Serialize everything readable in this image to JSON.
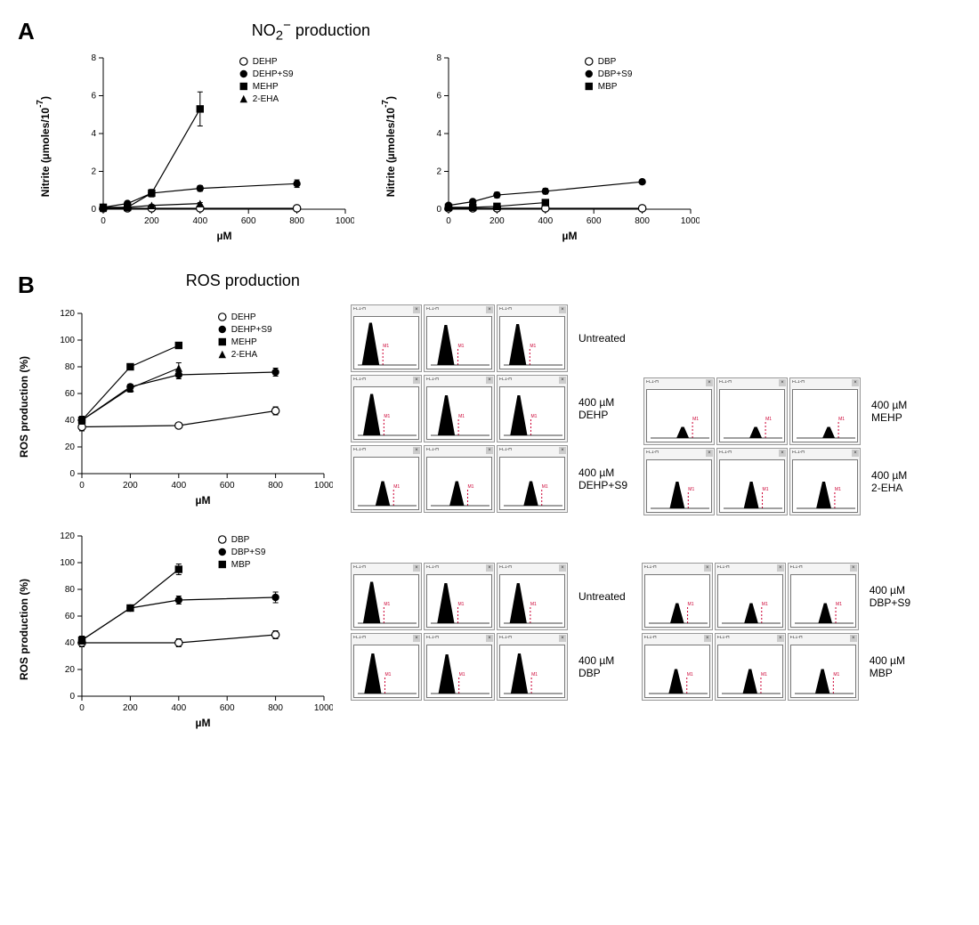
{
  "panelA": {
    "label": "A",
    "title_html": "NO<sub>2</sub><sup>−</sup> production",
    "left_chart": {
      "type": "line",
      "xlabel": "µM",
      "ylabel_html": "Nitrite (µmoles/10<sup>-7</sup>)",
      "xlim": [
        0,
        1000
      ],
      "xtick_step": 200,
      "ylim": [
        0,
        8
      ],
      "ytick_step": 2,
      "font_axis_label": 12,
      "font_tick": 10,
      "font_legend": 10,
      "bg": "#ffffff",
      "axis_color": "#000000",
      "series": [
        {
          "name": "DEHP",
          "marker": "open-circle",
          "x": [
            0,
            100,
            200,
            400,
            800
          ],
          "y": [
            0.05,
            0.05,
            0.05,
            0.05,
            0.05
          ],
          "err": [
            0,
            0,
            0,
            0,
            0
          ]
        },
        {
          "name": "DEHP+S9",
          "marker": "filled-circle",
          "x": [
            0,
            100,
            200,
            400,
            800
          ],
          "y": [
            0.1,
            0.3,
            0.85,
            1.1,
            1.35
          ],
          "err": [
            0,
            0.1,
            0.1,
            0.15,
            0.2
          ]
        },
        {
          "name": "MEHP",
          "marker": "filled-square",
          "x": [
            0,
            100,
            200,
            400
          ],
          "y": [
            0.1,
            0.1,
            0.85,
            5.3
          ],
          "err": [
            0,
            0,
            0.2,
            0.9
          ]
        },
        {
          "name": "2-EHA",
          "marker": "filled-triangle",
          "x": [
            0,
            100,
            200,
            400
          ],
          "y": [
            0.05,
            0.1,
            0.2,
            0.3
          ],
          "err": [
            0,
            0,
            0.05,
            0.05
          ]
        }
      ]
    },
    "right_chart": {
      "type": "line",
      "xlabel": "µM",
      "ylabel_html": "Nitrite (µmoles/10<sup>-7</sup>)",
      "xlim": [
        0,
        1000
      ],
      "xtick_step": 200,
      "ylim": [
        0,
        8
      ],
      "ytick_step": 2,
      "font_axis_label": 12,
      "font_tick": 10,
      "font_legend": 10,
      "bg": "#ffffff",
      "axis_color": "#000000",
      "series": [
        {
          "name": "DBP",
          "marker": "open-circle",
          "x": [
            0,
            100,
            200,
            400,
            800
          ],
          "y": [
            0.05,
            0.05,
            0.05,
            0.05,
            0.05
          ],
          "err": [
            0,
            0,
            0,
            0,
            0
          ]
        },
        {
          "name": "DBP+S9",
          "marker": "filled-circle",
          "x": [
            0,
            100,
            200,
            400,
            800
          ],
          "y": [
            0.2,
            0.4,
            0.75,
            0.95,
            1.45
          ],
          "err": [
            0,
            0.05,
            0.15,
            0.15,
            0.1
          ]
        },
        {
          "name": "MBP",
          "marker": "filled-square",
          "x": [
            0,
            100,
            200,
            400
          ],
          "y": [
            0.1,
            0.1,
            0.15,
            0.35
          ],
          "err": [
            0,
            0,
            0.05,
            0.1
          ]
        }
      ]
    }
  },
  "panelB": {
    "label": "B",
    "title": "ROS production",
    "top_chart": {
      "type": "line",
      "xlabel": "µM",
      "ylabel": "ROS production (%)",
      "xlim": [
        0,
        1000
      ],
      "xtick_step": 200,
      "ylim": [
        0,
        120
      ],
      "ytick_step": 20,
      "font_axis_label": 12,
      "font_tick": 10,
      "font_legend": 10,
      "bg": "#ffffff",
      "axis_color": "#000000",
      "series": [
        {
          "name": "DEHP",
          "marker": "open-circle",
          "x": [
            0,
            400,
            800
          ],
          "y": [
            35,
            36,
            47
          ],
          "err": [
            3,
            2,
            3
          ]
        },
        {
          "name": "DEHP+S9",
          "marker": "filled-circle",
          "x": [
            0,
            200,
            400,
            800
          ],
          "y": [
            40,
            65,
            74,
            76
          ],
          "err": [
            3,
            2,
            3,
            3
          ]
        },
        {
          "name": "MEHP",
          "marker": "filled-square",
          "x": [
            0,
            200,
            400
          ],
          "y": [
            40,
            80,
            96
          ],
          "err": [
            3,
            2,
            2
          ]
        },
        {
          "name": "2-EHA",
          "marker": "filled-triangle",
          "x": [
            0,
            200,
            400
          ],
          "y": [
            40,
            64,
            79
          ],
          "err": [
            3,
            3,
            4
          ]
        }
      ]
    },
    "bottom_chart": {
      "type": "line",
      "xlabel": "µM",
      "ylabel": "ROS production (%)",
      "xlim": [
        0,
        1000
      ],
      "xtick_step": 200,
      "ylim": [
        0,
        120
      ],
      "ytick_step": 20,
      "font_axis_label": 12,
      "font_tick": 10,
      "font_legend": 10,
      "bg": "#ffffff",
      "axis_color": "#000000",
      "series": [
        {
          "name": "DBP",
          "marker": "open-circle",
          "x": [
            0,
            400,
            800
          ],
          "y": [
            40,
            40,
            46
          ],
          "err": [
            3,
            3,
            3
          ]
        },
        {
          "name": "DBP+S9",
          "marker": "filled-circle",
          "x": [
            0,
            200,
            400,
            800
          ],
          "y": [
            42,
            66,
            72,
            74
          ],
          "err": [
            3,
            2,
            3,
            4
          ]
        },
        {
          "name": "MBP",
          "marker": "filled-square",
          "x": [
            0,
            200,
            400
          ],
          "y": [
            42,
            66,
            95
          ],
          "err": [
            3,
            2,
            4
          ]
        }
      ]
    },
    "flow_group_top": {
      "left_block": {
        "rows": [
          {
            "label": "Untreated",
            "hists": [
              {
                "shift": 0.2,
                "height": 0.95
              },
              {
                "shift": 0.24,
                "height": 0.9
              },
              {
                "shift": 0.22,
                "height": 0.92
              }
            ]
          },
          {
            "label": "400 µM\nDEHP",
            "hists": [
              {
                "shift": 0.22,
                "height": 0.93
              },
              {
                "shift": 0.25,
                "height": 0.9
              },
              {
                "shift": 0.24,
                "height": 0.9
              }
            ]
          },
          {
            "label": "400 µM\nDEHP+S9",
            "hists": [
              {
                "shift": 0.42,
                "height": 0.55
              },
              {
                "shift": 0.44,
                "height": 0.55
              },
              {
                "shift": 0.46,
                "height": 0.55
              }
            ]
          }
        ]
      },
      "right_block": {
        "rows": [
          {
            "label": "400 µM\nMEHP",
            "hists": [
              {
                "shift": 0.55,
                "height": 0.25
              },
              {
                "shift": 0.55,
                "height": 0.25
              },
              {
                "shift": 0.55,
                "height": 0.25
              }
            ]
          },
          {
            "label": "400 µM\n2-EHA",
            "hists": [
              {
                "shift": 0.45,
                "height": 0.6
              },
              {
                "shift": 0.47,
                "height": 0.6
              },
              {
                "shift": 0.46,
                "height": 0.6
              }
            ]
          }
        ]
      }
    },
    "flow_group_bottom": {
      "left_block": {
        "rows": [
          {
            "label": "Untreated",
            "hists": [
              {
                "shift": 0.22,
                "height": 0.93
              },
              {
                "shift": 0.24,
                "height": 0.9
              },
              {
                "shift": 0.23,
                "height": 0.9
              }
            ]
          },
          {
            "label": "400 µM\nDBP",
            "hists": [
              {
                "shift": 0.24,
                "height": 0.9
              },
              {
                "shift": 0.26,
                "height": 0.88
              },
              {
                "shift": 0.25,
                "height": 0.9
              }
            ]
          }
        ]
      },
      "right_block": {
        "rows": [
          {
            "label": "400 µM\nDBP+S9",
            "hists": [
              {
                "shift": 0.48,
                "height": 0.45
              },
              {
                "shift": 0.5,
                "height": 0.45
              },
              {
                "shift": 0.52,
                "height": 0.45
              }
            ]
          },
          {
            "label": "400 µM\nMBP",
            "hists": [
              {
                "shift": 0.46,
                "height": 0.55
              },
              {
                "shift": 0.48,
                "height": 0.55
              },
              {
                "shift": 0.47,
                "height": 0.55
              }
            ]
          }
        ]
      }
    },
    "hist_colors": {
      "fill": "#000000",
      "gate": "#cc0033",
      "bg": "#ffffff",
      "panel_bg": "#f4f4f4"
    }
  }
}
